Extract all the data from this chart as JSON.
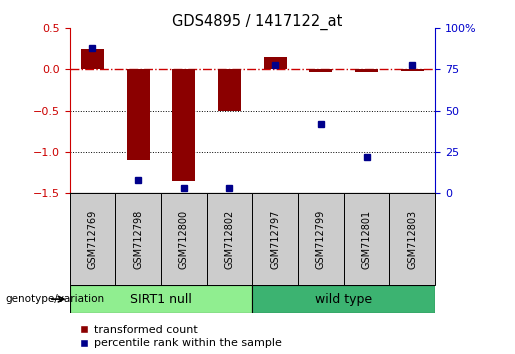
{
  "title": "GDS4895 / 1417122_at",
  "samples": [
    "GSM712769",
    "GSM712798",
    "GSM712800",
    "GSM712802",
    "GSM712797",
    "GSM712799",
    "GSM712801",
    "GSM712803"
  ],
  "transformed_count": [
    0.25,
    -1.1,
    -1.35,
    -0.5,
    0.15,
    -0.03,
    -0.03,
    -0.02
  ],
  "percentile_rank": [
    88,
    8,
    3,
    3,
    78,
    42,
    22,
    78
  ],
  "groups": [
    {
      "label": "SIRT1 null",
      "start": 0,
      "end": 4,
      "color": "#90EE90"
    },
    {
      "label": "wild type",
      "start": 4,
      "end": 8,
      "color": "#3CB371"
    }
  ],
  "bar_color": "#8B0000",
  "dot_color": "#00008B",
  "zero_line_color": "#CC0000",
  "ylim_left": [
    -1.5,
    0.5
  ],
  "ylim_right": [
    0,
    100
  ],
  "yticks_left": [
    -1.5,
    -1.0,
    -0.5,
    0.0,
    0.5
  ],
  "yticks_right": [
    0,
    25,
    50,
    75,
    100
  ],
  "genotype_label": "genotype/variation",
  "legend": [
    "transformed count",
    "percentile rank within the sample"
  ],
  "background_color": "#ffffff",
  "group1_color": "#90EE90",
  "group2_color": "#3CB371",
  "ticklabel_bg": "#cccccc"
}
